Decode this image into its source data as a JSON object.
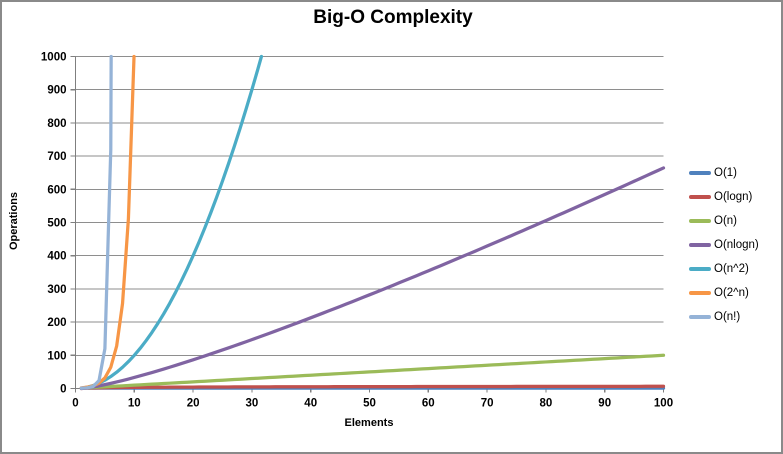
{
  "window": {
    "background": "#FFFFFF",
    "border_color": "#8A8A8A"
  },
  "chart_data": {
    "type": "line",
    "title": "Big-O Complexity",
    "xlabel": "Elements",
    "ylabel": "Operations",
    "xlim": [
      0,
      100
    ],
    "ylim": [
      0,
      1000
    ],
    "x_ticks": [
      0,
      10,
      20,
      30,
      40,
      50,
      60,
      70,
      80,
      90,
      100
    ],
    "y_ticks": [
      0,
      100,
      200,
      300,
      400,
      500,
      600,
      700,
      800,
      900,
      1000
    ],
    "grid": "horizontal-only",
    "gridline_color": "#8E8E8E",
    "axis_color": "#7F7F7F",
    "legend_position": "right",
    "clipped_at_y": 1000,
    "series": [
      {
        "name": "O(1)",
        "color": "#4F81BD",
        "formula": "1",
        "fn": "constant",
        "x": [
          1,
          100
        ],
        "y": [
          1,
          1
        ]
      },
      {
        "name": "O(logn)",
        "color": "#C0504D",
        "formula": "log2(n)",
        "fn": "log2",
        "x": [
          1,
          2,
          3,
          4,
          5,
          6,
          7,
          8,
          9,
          10,
          20,
          30,
          40,
          50,
          60,
          70,
          80,
          90,
          100
        ],
        "y": [
          0,
          1,
          1.58,
          2,
          2.32,
          2.58,
          2.81,
          3,
          3.17,
          3.32,
          4.32,
          4.91,
          5.32,
          5.64,
          5.91,
          6.13,
          6.32,
          6.49,
          6.64
        ]
      },
      {
        "name": "O(n)",
        "color": "#9BBB59",
        "formula": "n",
        "fn": "linear",
        "x": [
          1,
          2,
          3,
          4,
          5,
          6,
          7,
          8,
          9,
          10,
          20,
          30,
          40,
          50,
          60,
          70,
          80,
          90,
          100
        ],
        "y": [
          1,
          2,
          3,
          4,
          5,
          6,
          7,
          8,
          9,
          10,
          20,
          30,
          40,
          50,
          60,
          70,
          80,
          90,
          100
        ]
      },
      {
        "name": "O(nlogn)",
        "color": "#8064A2",
        "formula": "n*log2(n)",
        "fn": "nlogn",
        "x": [
          1,
          2,
          3,
          4,
          5,
          6,
          7,
          8,
          9,
          10,
          20,
          30,
          40,
          50,
          60,
          70,
          80,
          90,
          100
        ],
        "y": [
          0,
          2,
          4.75,
          8,
          11.61,
          15.51,
          19.65,
          24,
          28.53,
          33.22,
          86.44,
          147.21,
          212.88,
          282.19,
          354.41,
          429.05,
          505.75,
          584.26,
          664.39
        ]
      },
      {
        "name": "O(n^2)",
        "color": "#4BACC6",
        "formula": "n^2",
        "fn": "square",
        "x": [
          1,
          2,
          3,
          4,
          5,
          6,
          7,
          8,
          9,
          10,
          15,
          20,
          25,
          30,
          31,
          32
        ],
        "y": [
          1,
          4,
          9,
          16,
          25,
          36,
          49,
          64,
          81,
          100,
          225,
          400,
          625,
          900,
          961,
          1024
        ]
      },
      {
        "name": "O(2^n)",
        "color": "#F79646",
        "formula": "2^n",
        "fn": "pow2",
        "x": [
          1,
          2,
          3,
          4,
          5,
          6,
          7,
          8,
          9,
          10
        ],
        "y": [
          2,
          4,
          8,
          16,
          32,
          64,
          128,
          256,
          512,
          1024
        ]
      },
      {
        "name": "O(n!)",
        "color": "#95B3D7",
        "formula": "n!",
        "fn": "factorial",
        "x": [
          1,
          2,
          3,
          4,
          5,
          6,
          7
        ],
        "y": [
          1,
          2,
          6,
          24,
          120,
          720,
          5040
        ]
      }
    ]
  }
}
